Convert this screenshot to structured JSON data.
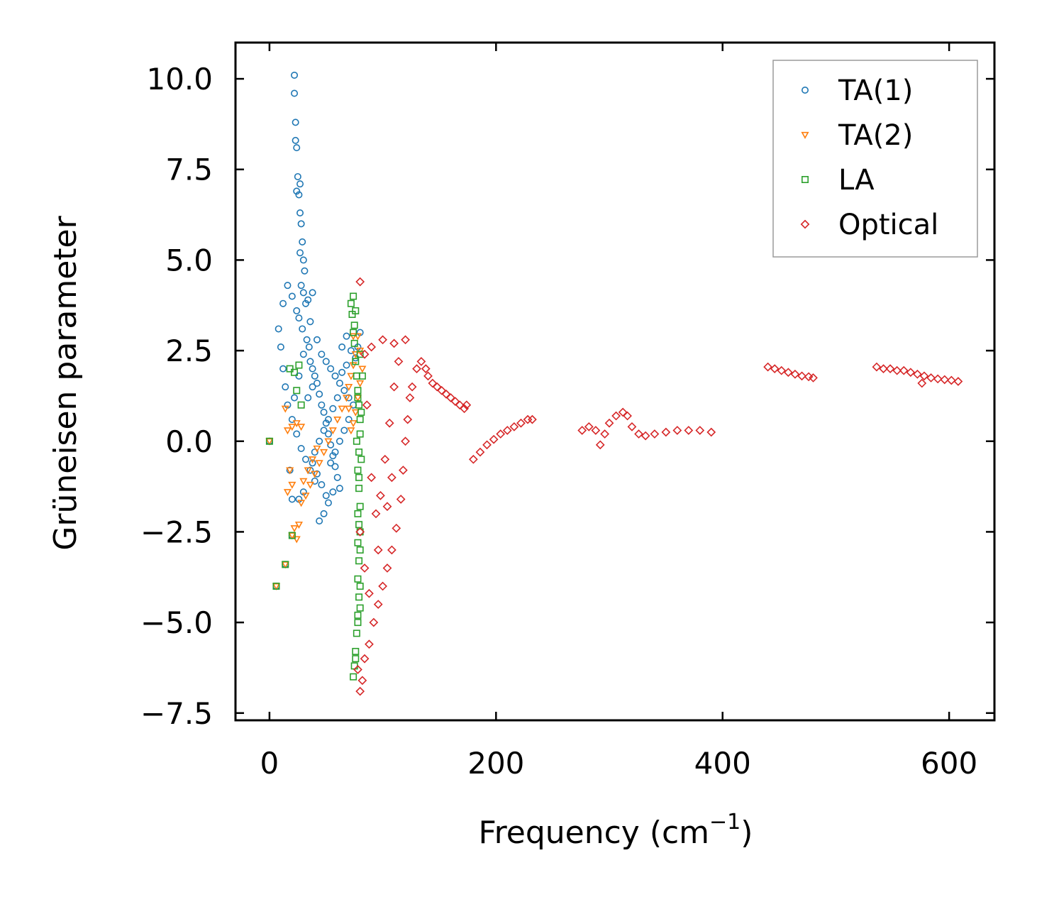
{
  "chart_data": {
    "type": "scatter",
    "title": "",
    "xlabel": "Frequency (cm",
    "xlabel_sup": "−1",
    "xlabel_end": ")",
    "ylabel": "Grüneisen parameter",
    "xlim": [
      -30,
      640
    ],
    "ylim": [
      -7.7,
      11.0
    ],
    "xticks": [
      0,
      200,
      400,
      600
    ],
    "xtick_labels": [
      "0",
      "200",
      "400",
      "600"
    ],
    "yticks": [
      -7.5,
      -5.0,
      -2.5,
      0.0,
      2.5,
      5.0,
      7.5,
      10.0
    ],
    "ytick_labels": [
      "−7.5",
      "−5.0",
      "−2.5",
      "0.0",
      "2.5",
      "5.0",
      "7.5",
      "10.0"
    ],
    "grid": false,
    "legend_position": "top-right",
    "series": [
      {
        "name": "TA(1)",
        "color": "#1f77b4",
        "marker": "circle",
        "points": [
          [
            0,
            0
          ],
          [
            6,
            -4.0
          ],
          [
            14,
            -3.4
          ],
          [
            20,
            -2.6
          ],
          [
            22,
            10.1
          ],
          [
            22,
            9.6
          ],
          [
            23,
            8.8
          ],
          [
            23,
            8.3
          ],
          [
            24,
            8.1
          ],
          [
            25,
            7.3
          ],
          [
            24,
            6.9
          ],
          [
            26,
            6.8
          ],
          [
            27,
            7.1
          ],
          [
            27,
            6.3
          ],
          [
            28,
            6.0
          ],
          [
            29,
            5.5
          ],
          [
            27,
            5.2
          ],
          [
            30,
            5.0
          ],
          [
            31,
            4.7
          ],
          [
            28,
            4.3
          ],
          [
            30,
            4.1
          ],
          [
            32,
            3.8
          ],
          [
            26,
            3.4
          ],
          [
            29,
            3.1
          ],
          [
            33,
            2.8
          ],
          [
            35,
            2.6
          ],
          [
            36,
            2.2
          ],
          [
            38,
            2.0
          ],
          [
            40,
            1.8
          ],
          [
            42,
            1.6
          ],
          [
            44,
            1.3
          ],
          [
            46,
            1.0
          ],
          [
            48,
            0.8
          ],
          [
            50,
            0.5
          ],
          [
            52,
            0.2
          ],
          [
            54,
            -0.1
          ],
          [
            56,
            -0.4
          ],
          [
            58,
            -0.7
          ],
          [
            60,
            -1.0
          ],
          [
            62,
            -1.3
          ],
          [
            44,
            -2.2
          ],
          [
            48,
            -2.0
          ],
          [
            52,
            -1.7
          ],
          [
            56,
            -1.4
          ],
          [
            40,
            -1.1
          ],
          [
            36,
            -0.8
          ],
          [
            32,
            -0.5
          ],
          [
            28,
            -0.2
          ],
          [
            24,
            0.2
          ],
          [
            20,
            0.6
          ],
          [
            16,
            1.0
          ],
          [
            14,
            1.5
          ],
          [
            12,
            2.0
          ],
          [
            10,
            2.6
          ],
          [
            8,
            3.1
          ],
          [
            12,
            3.8
          ],
          [
            16,
            4.3
          ],
          [
            20,
            4.0
          ],
          [
            24,
            3.6
          ],
          [
            46,
            2.4
          ],
          [
            50,
            2.2
          ],
          [
            54,
            2.0
          ],
          [
            58,
            1.8
          ],
          [
            62,
            1.6
          ],
          [
            66,
            1.4
          ],
          [
            70,
            1.2
          ],
          [
            74,
            1.0
          ],
          [
            76,
            2.3
          ],
          [
            78,
            2.6
          ],
          [
            80,
            3.0
          ],
          [
            72,
            2.5
          ],
          [
            68,
            2.1
          ],
          [
            64,
            1.9
          ],
          [
            60,
            1.2
          ],
          [
            56,
            0.9
          ],
          [
            52,
            0.6
          ],
          [
            48,
            0.3
          ],
          [
            44,
            0.0
          ],
          [
            40,
            -0.3
          ],
          [
            38,
            -0.6
          ],
          [
            42,
            -0.9
          ],
          [
            46,
            -1.2
          ],
          [
            50,
            -1.5
          ],
          [
            34,
            1.2
          ],
          [
            38,
            1.5
          ],
          [
            42,
            2.8
          ],
          [
            36,
            3.3
          ],
          [
            34,
            3.9
          ],
          [
            38,
            4.1
          ],
          [
            30,
            2.4
          ],
          [
            26,
            1.8
          ],
          [
            22,
            1.2
          ],
          [
            18,
            -0.8
          ],
          [
            20,
            -1.6
          ],
          [
            26,
            -1.6
          ],
          [
            30,
            -1.4
          ],
          [
            64,
            2.6
          ],
          [
            68,
            2.9
          ],
          [
            70,
            0.6
          ],
          [
            66,
            0.3
          ],
          [
            62,
            0.0
          ],
          [
            58,
            -0.3
          ],
          [
            54,
            -0.6
          ]
        ]
      },
      {
        "name": "TA(2)",
        "color": "#ff7f0e",
        "marker": "triangle-down",
        "points": [
          [
            0,
            0
          ],
          [
            6,
            -4.0
          ],
          [
            14,
            -3.4
          ],
          [
            20,
            -2.6
          ],
          [
            24,
            -2.7
          ],
          [
            22,
            -2.4
          ],
          [
            26,
            -2.3
          ],
          [
            28,
            -1.7
          ],
          [
            32,
            -1.5
          ],
          [
            36,
            -1.2
          ],
          [
            40,
            -0.9
          ],
          [
            44,
            -0.6
          ],
          [
            48,
            -0.3
          ],
          [
            52,
            0.0
          ],
          [
            56,
            0.3
          ],
          [
            60,
            0.6
          ],
          [
            64,
            0.9
          ],
          [
            68,
            1.2
          ],
          [
            70,
            1.5
          ],
          [
            72,
            1.8
          ],
          [
            74,
            2.1
          ],
          [
            76,
            2.4
          ],
          [
            78,
            2.9
          ],
          [
            74,
            2.9
          ],
          [
            80,
            2.5
          ],
          [
            82,
            2.0
          ],
          [
            80,
            1.6
          ],
          [
            78,
            1.2
          ],
          [
            76,
            0.8
          ],
          [
            74,
            0.5
          ],
          [
            72,
            0.3
          ],
          [
            70,
            0.9
          ],
          [
            16,
            0.3
          ],
          [
            20,
            0.4
          ],
          [
            24,
            0.5
          ],
          [
            28,
            0.4
          ],
          [
            14,
            0.9
          ],
          [
            18,
            -0.8
          ],
          [
            16,
            -1.4
          ],
          [
            20,
            -1.2
          ],
          [
            30,
            -1.1
          ],
          [
            34,
            -0.8
          ],
          [
            38,
            -0.5
          ],
          [
            42,
            -0.2
          ]
        ]
      },
      {
        "name": "LA",
        "color": "#2ca02c",
        "marker": "square",
        "points": [
          [
            0,
            0
          ],
          [
            6,
            -4.0
          ],
          [
            14,
            -3.4
          ],
          [
            20,
            -2.6
          ],
          [
            18,
            2.0
          ],
          [
            22,
            1.9
          ],
          [
            26,
            2.1
          ],
          [
            24,
            1.4
          ],
          [
            28,
            1.0
          ],
          [
            72,
            3.8
          ],
          [
            74,
            4.0
          ],
          [
            73,
            3.5
          ],
          [
            74,
            3.0
          ],
          [
            75,
            2.7
          ],
          [
            76,
            2.2
          ],
          [
            77,
            1.8
          ],
          [
            78,
            1.4
          ],
          [
            79,
            1.0
          ],
          [
            80,
            0.6
          ],
          [
            80,
            0.2
          ],
          [
            79,
            -0.3
          ],
          [
            78,
            -0.8
          ],
          [
            79,
            -1.3
          ],
          [
            80,
            -1.8
          ],
          [
            79,
            -2.3
          ],
          [
            78,
            -2.8
          ],
          [
            79,
            -3.3
          ],
          [
            78,
            -3.8
          ],
          [
            79,
            -4.3
          ],
          [
            78,
            -4.8
          ],
          [
            77,
            -5.3
          ],
          [
            76,
            -5.8
          ],
          [
            75,
            -6.2
          ],
          [
            74,
            -6.5
          ],
          [
            76,
            -6.0
          ],
          [
            78,
            -5.0
          ],
          [
            80,
            -4.0
          ],
          [
            80,
            -3.0
          ],
          [
            78,
            -2.0
          ],
          [
            79,
            -1.0
          ],
          [
            77,
            0.0
          ],
          [
            78,
            1.2
          ],
          [
            75,
            3.2
          ],
          [
            76,
            3.6
          ],
          [
            80,
            2.4
          ],
          [
            82,
            1.8
          ],
          [
            81,
            0.8
          ],
          [
            81,
            -0.5
          ],
          [
            80,
            -2.5
          ],
          [
            80,
            -4.6
          ]
        ]
      },
      {
        "name": "Optical",
        "color": "#d62728",
        "marker": "diamond",
        "points": [
          [
            80,
            4.4
          ],
          [
            80,
            -6.9
          ],
          [
            82,
            -6.6
          ],
          [
            78,
            -6.3
          ],
          [
            84,
            -6.0
          ],
          [
            88,
            -5.6
          ],
          [
            92,
            -5.0
          ],
          [
            96,
            -4.5
          ],
          [
            100,
            -4.0
          ],
          [
            104,
            -3.5
          ],
          [
            108,
            -3.0
          ],
          [
            112,
            -2.4
          ],
          [
            116,
            -1.6
          ],
          [
            118,
            -0.8
          ],
          [
            120,
            0.0
          ],
          [
            122,
            0.6
          ],
          [
            124,
            1.2
          ],
          [
            126,
            1.5
          ],
          [
            130,
            2.0
          ],
          [
            134,
            2.2
          ],
          [
            138,
            2.0
          ],
          [
            140,
            1.8
          ],
          [
            144,
            1.6
          ],
          [
            148,
            1.5
          ],
          [
            152,
            1.4
          ],
          [
            156,
            1.3
          ],
          [
            160,
            1.2
          ],
          [
            164,
            1.1
          ],
          [
            168,
            1.0
          ],
          [
            172,
            0.9
          ],
          [
            174,
            1.0
          ],
          [
            120,
            2.8
          ],
          [
            110,
            2.7
          ],
          [
            100,
            2.8
          ],
          [
            90,
            2.6
          ],
          [
            84,
            2.4
          ],
          [
            86,
            1.0
          ],
          [
            90,
            -1.0
          ],
          [
            94,
            -2.0
          ],
          [
            98,
            -1.5
          ],
          [
            102,
            -0.5
          ],
          [
            106,
            0.5
          ],
          [
            110,
            1.5
          ],
          [
            114,
            2.2
          ],
          [
            80,
            -2.5
          ],
          [
            84,
            -3.5
          ],
          [
            88,
            -4.2
          ],
          [
            96,
            -3.0
          ],
          [
            104,
            -1.8
          ],
          [
            108,
            -1.0
          ],
          [
            180,
            -0.5
          ],
          [
            186,
            -0.3
          ],
          [
            192,
            -0.1
          ],
          [
            198,
            0.05
          ],
          [
            204,
            0.2
          ],
          [
            210,
            0.3
          ],
          [
            216,
            0.4
          ],
          [
            222,
            0.5
          ],
          [
            228,
            0.6
          ],
          [
            232,
            0.6
          ],
          [
            276,
            0.3
          ],
          [
            282,
            0.4
          ],
          [
            288,
            0.3
          ],
          [
            292,
            -0.1
          ],
          [
            296,
            0.2
          ],
          [
            300,
            0.5
          ],
          [
            306,
            0.7
          ],
          [
            312,
            0.8
          ],
          [
            316,
            0.7
          ],
          [
            320,
            0.4
          ],
          [
            326,
            0.2
          ],
          [
            332,
            0.15
          ],
          [
            340,
            0.2
          ],
          [
            350,
            0.25
          ],
          [
            360,
            0.3
          ],
          [
            370,
            0.3
          ],
          [
            380,
            0.3
          ],
          [
            390,
            0.25
          ],
          [
            440,
            2.05
          ],
          [
            446,
            2.0
          ],
          [
            452,
            1.95
          ],
          [
            458,
            1.9
          ],
          [
            464,
            1.85
          ],
          [
            470,
            1.8
          ],
          [
            476,
            1.78
          ],
          [
            480,
            1.75
          ],
          [
            536,
            2.05
          ],
          [
            542,
            2.0
          ],
          [
            548,
            2.0
          ],
          [
            554,
            1.95
          ],
          [
            560,
            1.95
          ],
          [
            566,
            1.9
          ],
          [
            572,
            1.85
          ],
          [
            578,
            1.8
          ],
          [
            584,
            1.75
          ],
          [
            590,
            1.72
          ],
          [
            596,
            1.7
          ],
          [
            602,
            1.68
          ],
          [
            608,
            1.65
          ],
          [
            576,
            1.6
          ]
        ]
      }
    ]
  }
}
